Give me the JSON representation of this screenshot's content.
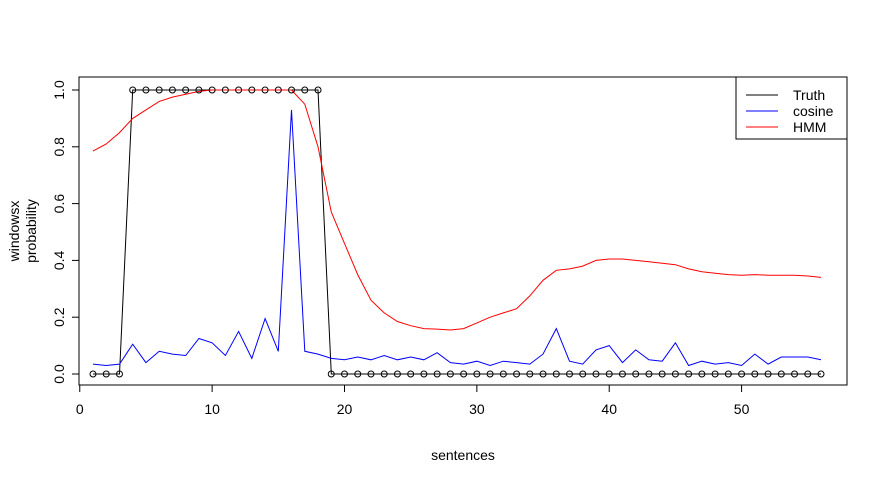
{
  "chart_data": {
    "type": "line",
    "xlabel": "sentences",
    "ylabel_lines": [
      "windowsx",
      "probability"
    ],
    "xlim": [
      1,
      56
    ],
    "ylim": [
      0,
      1
    ],
    "xticks": [
      0,
      10,
      20,
      30,
      40,
      50
    ],
    "yticks": [
      0.0,
      0.2,
      0.4,
      0.6,
      0.8,
      1.0
    ],
    "ytick_labels": [
      "0.0",
      "0.2",
      "0.4",
      "0.6",
      "0.8",
      "1.0"
    ],
    "legend_position": "top-right",
    "series": [
      {
        "name": "Truth",
        "color": "#000000",
        "markers": "open-circle",
        "x": [
          1,
          2,
          3,
          4,
          5,
          6,
          7,
          8,
          9,
          10,
          11,
          12,
          13,
          14,
          15,
          16,
          17,
          18,
          19,
          20,
          21,
          22,
          23,
          24,
          25,
          26,
          27,
          28,
          29,
          30,
          31,
          32,
          33,
          34,
          35,
          36,
          37,
          38,
          39,
          40,
          41,
          42,
          43,
          44,
          45,
          46,
          47,
          48,
          49,
          50,
          51,
          52,
          53,
          54,
          55,
          56
        ],
        "y": [
          0,
          0,
          0,
          1,
          1,
          1,
          1,
          1,
          1,
          1,
          1,
          1,
          1,
          1,
          1,
          1,
          1,
          1,
          0,
          0,
          0,
          0,
          0,
          0,
          0,
          0,
          0,
          0,
          0,
          0,
          0,
          0,
          0,
          0,
          0,
          0,
          0,
          0,
          0,
          0,
          0,
          0,
          0,
          0,
          0,
          0,
          0,
          0,
          0,
          0,
          0,
          0,
          0,
          0,
          0,
          0
        ]
      },
      {
        "name": "cosine",
        "color": "#0000ff",
        "x": [
          1,
          2,
          3,
          4,
          5,
          6,
          7,
          8,
          9,
          10,
          11,
          12,
          13,
          14,
          15,
          16,
          17,
          18,
          19,
          20,
          21,
          22,
          23,
          24,
          25,
          26,
          27,
          28,
          29,
          30,
          31,
          32,
          33,
          34,
          35,
          36,
          37,
          38,
          39,
          40,
          41,
          42,
          43,
          44,
          45,
          46,
          47,
          48,
          49,
          50,
          51,
          52,
          53,
          54,
          55,
          56
        ],
        "y": [
          0.035,
          0.03,
          0.035,
          0.105,
          0.04,
          0.08,
          0.07,
          0.065,
          0.125,
          0.11,
          0.065,
          0.15,
          0.055,
          0.195,
          0.08,
          0.93,
          0.08,
          0.07,
          0.055,
          0.05,
          0.06,
          0.05,
          0.065,
          0.05,
          0.06,
          0.05,
          0.075,
          0.04,
          0.035,
          0.045,
          0.03,
          0.045,
          0.04,
          0.035,
          0.07,
          0.16,
          0.045,
          0.035,
          0.085,
          0.1,
          0.04,
          0.085,
          0.05,
          0.045,
          0.11,
          0.03,
          0.045,
          0.035,
          0.04,
          0.03,
          0.07,
          0.035,
          0.06,
          0.06,
          0.06,
          0.05
        ]
      },
      {
        "name": "HMM",
        "color": "#ff0000",
        "x": [
          1,
          2,
          3,
          4,
          5,
          6,
          7,
          8,
          9,
          10,
          11,
          12,
          13,
          14,
          15,
          16,
          17,
          18,
          19,
          20,
          21,
          22,
          23,
          24,
          25,
          26,
          27,
          28,
          29,
          30,
          31,
          32,
          33,
          34,
          35,
          36,
          37,
          38,
          39,
          40,
          41,
          42,
          43,
          44,
          45,
          46,
          47,
          48,
          49,
          50,
          51,
          52,
          53,
          54,
          55,
          56
        ],
        "y": [
          0.785,
          0.81,
          0.85,
          0.9,
          0.93,
          0.96,
          0.975,
          0.985,
          0.995,
          1.0,
          1.0,
          1.0,
          1.0,
          1.0,
          1.0,
          1.0,
          0.95,
          0.8,
          0.57,
          0.46,
          0.35,
          0.26,
          0.215,
          0.185,
          0.17,
          0.16,
          0.158,
          0.155,
          0.16,
          0.18,
          0.2,
          0.215,
          0.23,
          0.275,
          0.33,
          0.365,
          0.37,
          0.38,
          0.4,
          0.405,
          0.405,
          0.4,
          0.395,
          0.39,
          0.385,
          0.37,
          0.36,
          0.355,
          0.35,
          0.348,
          0.35,
          0.348,
          0.348,
          0.348,
          0.345,
          0.34
        ]
      }
    ]
  }
}
